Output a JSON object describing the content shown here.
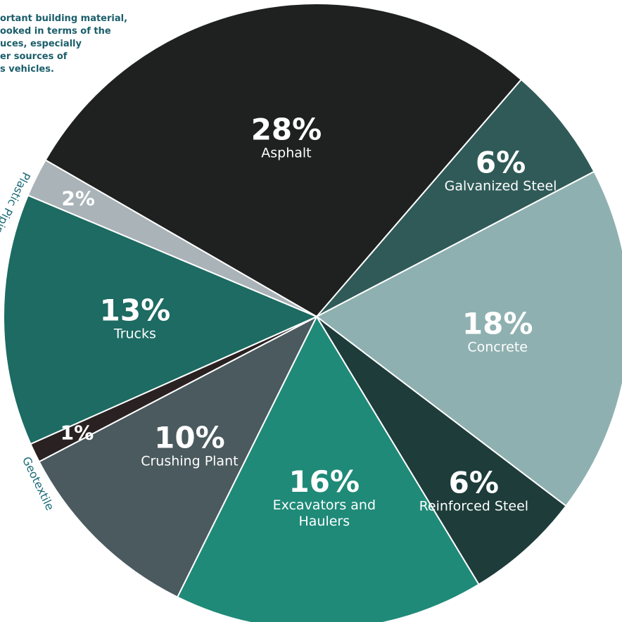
{
  "annotation": [
    "ortant building material,",
    "ooked in terms of the",
    "uces, especially",
    "er sources of",
    "s vehicles."
  ],
  "chart_data": {
    "type": "pie",
    "categories": [
      "Asphalt",
      "Galvanized Steel",
      "Concrete",
      "Reinforced Steel",
      "Excavators and Haulers",
      "Crushing Plant",
      "Geotextile",
      "Trucks",
      "Plastic Piping"
    ],
    "values": [
      28,
      6,
      18,
      6,
      16,
      10,
      1,
      13,
      2
    ],
    "value_labels": [
      "28%",
      "6%",
      "18%",
      "6%",
      "16%",
      "10%",
      "1%",
      "13%",
      "2%"
    ],
    "colors": [
      "#1f2020",
      "#2f5a57",
      "#8fb0b0",
      "#1d3c3a",
      "#1f8a78",
      "#4a5a5e",
      "#2a2222",
      "#1d6b63",
      "#a9b3b8"
    ]
  }
}
